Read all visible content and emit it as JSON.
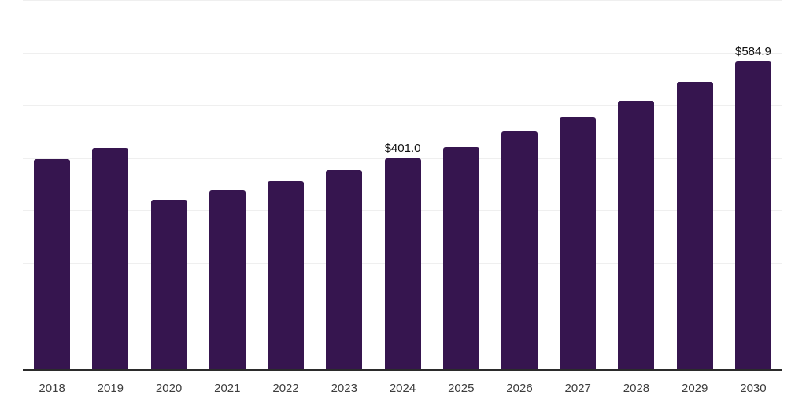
{
  "chart_data": {
    "type": "bar",
    "title": "",
    "xlabel": "",
    "ylabel": "",
    "categories": [
      "2018",
      "2019",
      "2020",
      "2021",
      "2022",
      "2023",
      "2024",
      "2025",
      "2026",
      "2027",
      "2028",
      "2029",
      "2030"
    ],
    "values": [
      400,
      421,
      321,
      339,
      357,
      378,
      401.0,
      422,
      451,
      478,
      510,
      546,
      584.9
    ],
    "data_labels": {
      "2024": "$401.0",
      "2030": "$584.9"
    },
    "ylim": [
      0,
      700
    ],
    "gridline_step": 100,
    "grid": true,
    "legend": false,
    "colors": {
      "bar": "#36154F",
      "axis_line": "#2B2B2B",
      "gridline": "#EFEFEF",
      "tick_label": "#3D3D3D",
      "data_label": "#111111",
      "background": "#FFFFFF"
    }
  }
}
